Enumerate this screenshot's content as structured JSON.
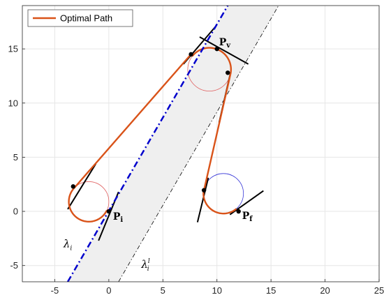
{
  "chart_data": {
    "type": "line",
    "xlim": [
      -8,
      25
    ],
    "ylim": [
      -6.5,
      19
    ],
    "xticks": [
      -5,
      0,
      5,
      10,
      15,
      20,
      25
    ],
    "yticks": [
      -5,
      0,
      5,
      10,
      15
    ],
    "grid": true,
    "legend": {
      "position": "top-left",
      "entries": [
        "Optimal Path"
      ]
    },
    "colors": {
      "path": "#D95319",
      "lambda": "#0000CC",
      "boundary": "#000000",
      "band": "#EFEFEF",
      "circle_red": "#E06060",
      "circle_blue": "#3A3AD8",
      "grid": "#E6E6E6"
    },
    "band": {
      "left_line": [
        [
          -3.8,
          -6.5
        ],
        [
          11,
          19
        ]
      ],
      "right_line": [
        [
          0.9,
          -6.5
        ],
        [
          15.7,
          19
        ]
      ]
    },
    "lambda_i": [
      [
        -3.8,
        -6.5
      ],
      [
        11,
        19
      ]
    ],
    "lambda_i_l": [
      [
        0.9,
        -6.5
      ],
      [
        15.7,
        19
      ]
    ],
    "circles": [
      {
        "center": [
          -1.85,
          0.9
        ],
        "r": 1.85,
        "color": "red"
      },
      {
        "center": [
          9.3,
          13.1
        ],
        "r": 2.0,
        "color": "red"
      },
      {
        "center": [
          10.6,
          1.65
        ],
        "r": 1.85,
        "color": "blue"
      }
    ],
    "tangent_segments": [
      [
        [
          -0.95,
          -2.7
        ],
        [
          0.9,
          1.8
        ]
      ],
      [
        [
          -3.8,
          0.2
        ],
        [
          -1.2,
          4.4
        ]
      ],
      [
        [
          6.9,
          13.6
        ],
        [
          9.9,
          17.1
        ]
      ],
      [
        [
          8.4,
          16.1
        ],
        [
          12.9,
          13.6
        ]
      ],
      [
        [
          10.2,
          8.2
        ],
        [
          11.3,
          13.0
        ]
      ],
      [
        [
          8.2,
          -1.0
        ],
        [
          9.2,
          3.1
        ]
      ],
      [
        [
          11.2,
          -0.3
        ],
        [
          14.3,
          1.9
        ]
      ]
    ],
    "points": [
      {
        "label": "P_i",
        "x": 0.0,
        "y": 0.0
      },
      {
        "label": "",
        "x": -3.3,
        "y": 2.3
      },
      {
        "label": "",
        "x": 7.6,
        "y": 14.5
      },
      {
        "label": "P_v",
        "x": 10.0,
        "y": 15.0
      },
      {
        "label": "",
        "x": 11.0,
        "y": 12.8
      },
      {
        "label": "",
        "x": 8.8,
        "y": 1.95
      },
      {
        "label": "P_f",
        "x": 12.0,
        "y": 0.0
      }
    ],
    "optimal_path": {
      "arc1_center": [
        -1.85,
        0.9
      ],
      "arc1_r": 1.85,
      "line1": [
        [
          -3.3,
          2.3
        ],
        [
          7.6,
          14.5
        ]
      ],
      "arc2_center": [
        9.3,
        13.1
      ],
      "arc2_r": 2.0,
      "line2": [
        [
          11.0,
          12.8
        ],
        [
          8.8,
          1.95
        ]
      ],
      "arc3_center": [
        10.6,
        1.65
      ],
      "arc3_r": 1.85
    },
    "annotations": [
      {
        "text": "λ",
        "sub": "i",
        "sup": "",
        "x": -4.2,
        "y": -3.3
      },
      {
        "text": "λ",
        "sub": "i",
        "sup": "l",
        "x": 3.0,
        "y": -5.2
      }
    ],
    "labels": {
      "Pi": "P",
      "Pi_sub": "i",
      "Pv": "P",
      "Pv_sub": "v",
      "Pf": "P",
      "Pf_sub": "f"
    }
  },
  "legend": {
    "label": "Optimal Path"
  }
}
